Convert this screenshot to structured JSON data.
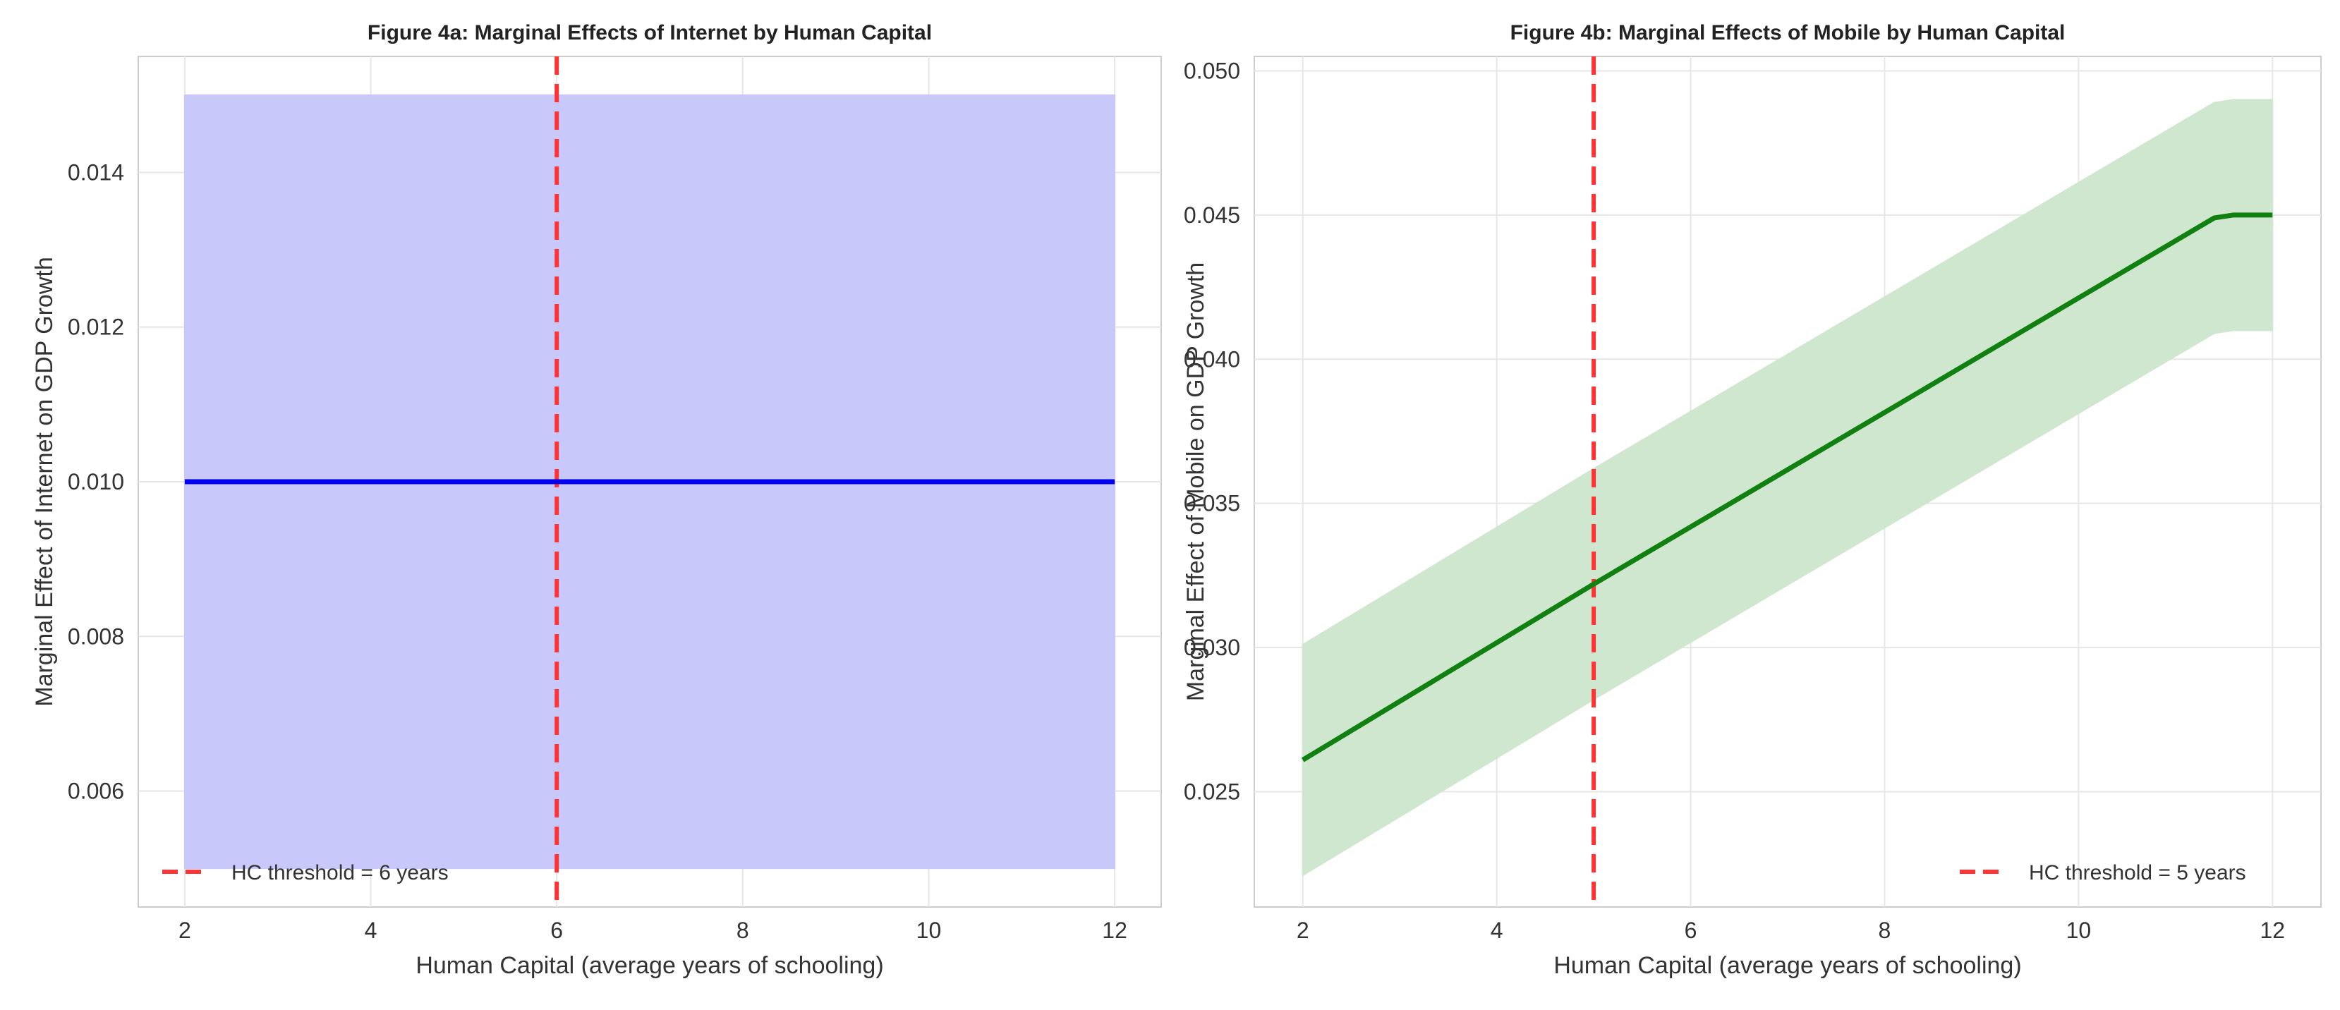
{
  "chart_data": [
    {
      "type": "line",
      "title": "Figure 4a: Marginal Effects of Internet by Human Capital",
      "xlabel": "Human Capital (average years of schooling)",
      "ylabel": "Marginal Effect of Internet on GDP Growth",
      "xlim": [
        1.5,
        12.5
      ],
      "ylim": [
        0.0045,
        0.0155
      ],
      "xticks": [
        2,
        4,
        6,
        8,
        10,
        12
      ],
      "xtick_labels": [
        "2",
        "4",
        "6",
        "8",
        "10",
        "12"
      ],
      "yticks": [
        0.006,
        0.008,
        0.01,
        0.012,
        0.014
      ],
      "ytick_labels": [
        "0.006",
        "0.008",
        "0.010",
        "0.012",
        "0.014"
      ],
      "grid": true,
      "series": [
        {
          "x": [
            2,
            12
          ],
          "y": [
            0.01,
            0.01
          ],
          "ci_lower": [
            0.005,
            0.005
          ],
          "ci_upper": [
            0.015,
            0.015
          ],
          "color": "#0000ee",
          "band_color": "#c8c8fa"
        }
      ],
      "threshold": {
        "x": 6,
        "label": "HC threshold = 6 years",
        "color": "#ff3333"
      },
      "legend_position": "lower-left"
    },
    {
      "type": "line",
      "title": "Figure 4b: Marginal Effects of Mobile by Human Capital",
      "xlabel": "Human Capital (average years of schooling)",
      "ylabel": "Marginal Effect of Mobile on GDP Growth",
      "xlim": [
        1.5,
        12.5
      ],
      "ylim": [
        0.021,
        0.0505
      ],
      "xticks": [
        2,
        4,
        6,
        8,
        10,
        12
      ],
      "xtick_labels": [
        "2",
        "4",
        "6",
        "8",
        "10",
        "12"
      ],
      "yticks": [
        0.025,
        0.03,
        0.035,
        0.04,
        0.045,
        0.05
      ],
      "ytick_labels": [
        "0.025",
        "0.030",
        "0.035",
        "0.040",
        "0.045",
        "0.050"
      ],
      "grid": true,
      "series": [
        {
          "x": [
            2,
            5,
            11.4,
            11.6,
            12
          ],
          "y": [
            0.0261,
            0.0322,
            0.0449,
            0.045,
            0.045
          ],
          "ci_lower": [
            0.0221,
            0.0282,
            0.0409,
            0.041,
            0.041
          ],
          "ci_upper": [
            0.0301,
            0.0362,
            0.0489,
            0.049,
            0.049
          ],
          "color": "#108010",
          "band_color": "#cfe6cf"
        }
      ],
      "threshold": {
        "x": 5,
        "label": "HC threshold = 5 years",
        "color": "#ff3333"
      },
      "legend_position": "lower-right"
    }
  ]
}
